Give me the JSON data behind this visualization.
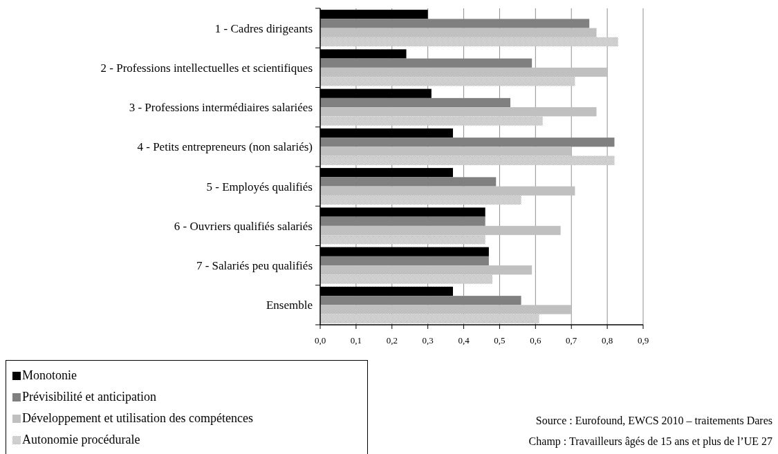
{
  "chart_data": {
    "type": "bar",
    "orientation": "horizontal",
    "categories": [
      "1 - Cadres dirigeants",
      "2 - Professions intellectuelles et scientifiques",
      "3 - Professions intermédiaires salariées",
      "4 - Petits entrepreneurs (non salariés)",
      "5 - Employés qualifiés",
      "6 - Ouvriers qualifiés salariés",
      "7 - Salariés peu qualifiés",
      "Ensemble"
    ],
    "series": [
      {
        "name": "Monotonie",
        "color": "#000000",
        "values": [
          0.3,
          0.24,
          0.31,
          0.37,
          0.37,
          0.46,
          0.47,
          0.37
        ]
      },
      {
        "name": "Prévisibilité et anticipation",
        "color": "#808080",
        "values": [
          0.75,
          0.59,
          0.53,
          0.82,
          0.49,
          0.46,
          0.47,
          0.56
        ]
      },
      {
        "name": "Développement et utilisation des compétences",
        "color": "#c0c0c0",
        "values": [
          0.77,
          0.8,
          0.77,
          0.7,
          0.71,
          0.67,
          0.59,
          0.7
        ]
      },
      {
        "name": "Autonomie procédurale",
        "color": "#a0a0a0",
        "values": [
          0.83,
          0.71,
          0.62,
          0.82,
          0.56,
          0.46,
          0.48,
          0.61
        ]
      }
    ],
    "xlim": [
      0,
      0.9
    ],
    "xticks": [
      {
        "value": 0,
        "label": "0,0"
      },
      {
        "value": 0.1,
        "label": "0,1"
      },
      {
        "value": 0.2,
        "label": "0,2"
      },
      {
        "value": 0.3,
        "label": "0,3"
      },
      {
        "value": 0.4,
        "label": "0,4"
      },
      {
        "value": 0.5,
        "label": "0,5"
      },
      {
        "value": 0.6,
        "label": "0,6"
      },
      {
        "value": 0.7,
        "label": "0,7"
      },
      {
        "value": 0.8,
        "label": "0,8"
      },
      {
        "value": 0.9,
        "label": "0,9"
      }
    ],
    "grid": "x",
    "legend": "bottom left",
    "annotations": [
      "Source : Eurofound, EWCS 2010 – traitements Dares",
      "Champ : Travailleurs âgés de 15 ans et plus de l’UE 27"
    ]
  }
}
